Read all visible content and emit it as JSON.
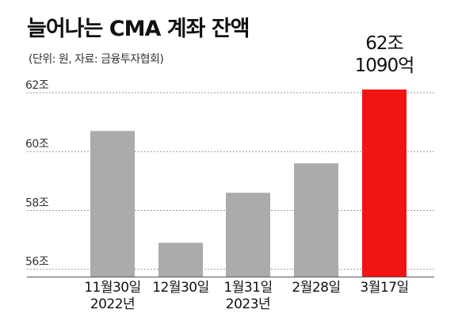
{
  "header": {
    "title": "늘어나는 CMA 계좌 잔액",
    "subtitle": "(단위: 원, 자료: 금융투자협회)"
  },
  "chart_data": {
    "type": "bar",
    "title": "늘어나는 CMA 계좌 잔액",
    "subtitle": "(단위: 원, 자료: 금융투자협회)",
    "categories": [
      "11월30일 2022년",
      "12월30일",
      "1월31일 2023년",
      "2월28일",
      "3월17일"
    ],
    "category_lines": [
      [
        "11월30일",
        "2022년"
      ],
      [
        "12월30일"
      ],
      [
        "1월31일",
        "2023년"
      ],
      [
        "2월28일"
      ],
      [
        "3월17일"
      ]
    ],
    "values": [
      60.7,
      56.9,
      58.6,
      59.6,
      62.109
    ],
    "bar_colors": [
      "#ababab",
      "#ababab",
      "#ababab",
      "#ababab",
      "#f21313"
    ],
    "yticks": [
      56,
      58,
      60,
      62
    ],
    "ytick_labels": [
      "56조",
      "58조",
      "60조",
      "62조"
    ],
    "ylim": [
      55.75,
      62.35
    ],
    "grid": true,
    "callout": {
      "bar_index": 4,
      "lines": [
        "62조",
        "1090억"
      ]
    }
  }
}
